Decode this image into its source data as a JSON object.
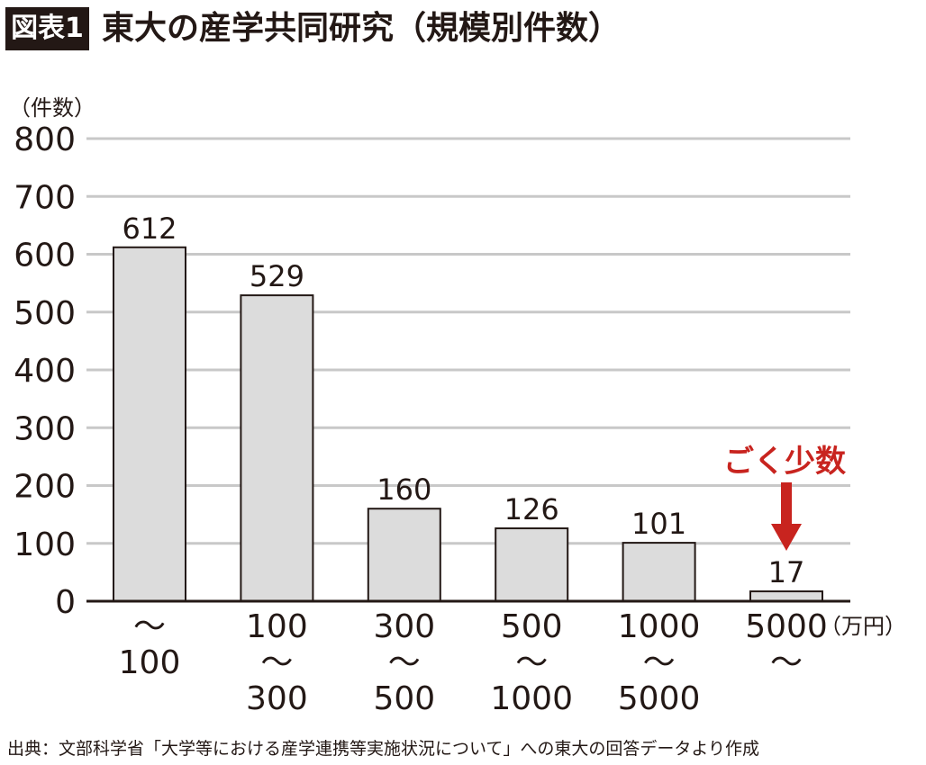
{
  "figure": {
    "badge": "図表1",
    "title": "東大の産学共同研究（規模別件数）",
    "source": "出典：文部科学省「大学等における産学連携等実施状況について」への東大の回答データより作成"
  },
  "chart_data": {
    "type": "bar",
    "ylabel": "（件数）",
    "xunit": "（万円）",
    "ylim": [
      0,
      800
    ],
    "yticks": [
      0,
      100,
      200,
      300,
      400,
      500,
      600,
      700,
      800
    ],
    "grid": true,
    "categories": [
      [
        "〜",
        "100"
      ],
      [
        "100",
        "〜",
        "300"
      ],
      [
        "300",
        "〜",
        "500"
      ],
      [
        "500",
        "〜",
        "1000"
      ],
      [
        "1000",
        "〜",
        "5000"
      ],
      [
        "5000",
        "〜"
      ]
    ],
    "values": [
      612,
      529,
      160,
      126,
      101,
      17
    ],
    "annotation": {
      "text": "ごく少数",
      "target_index": 5
    },
    "colors": {
      "bar_fill": "#dcdcdc",
      "bar_stroke": "#231815",
      "grid": "#c8c8c8",
      "accent": "#c8241f"
    }
  }
}
